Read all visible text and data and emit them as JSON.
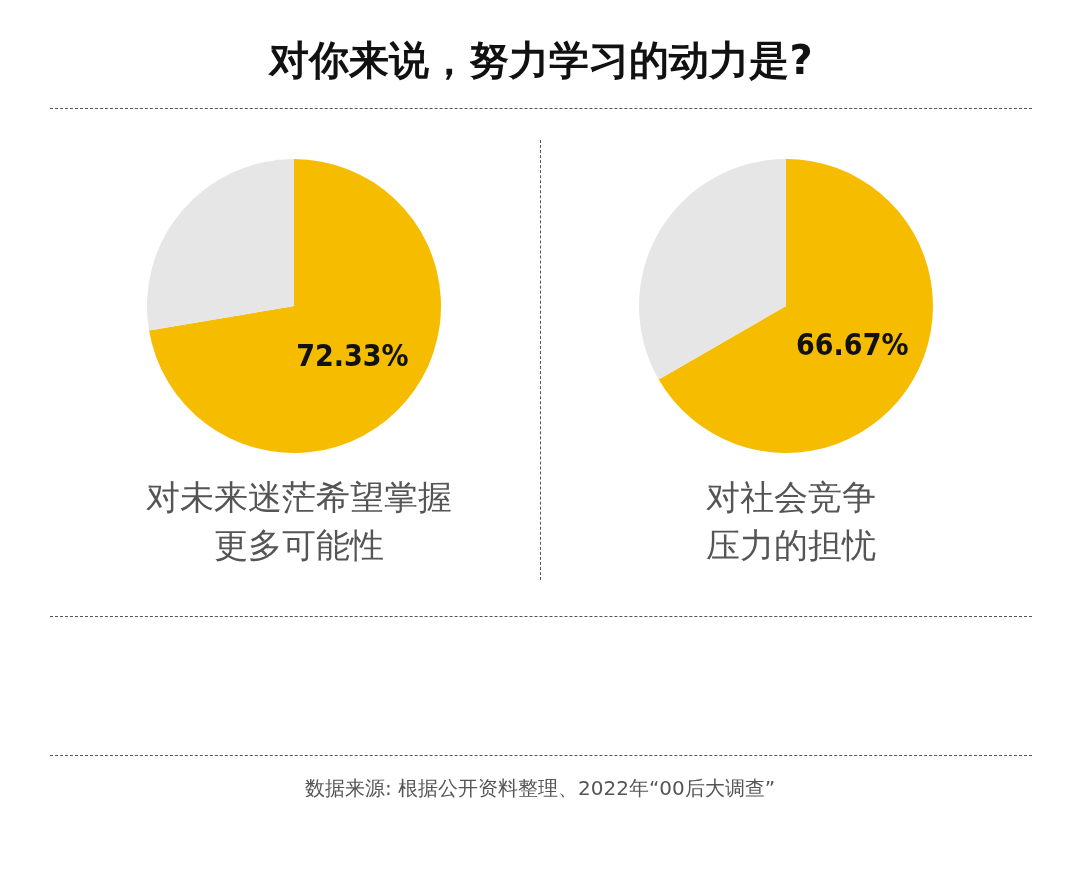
{
  "chart_data": [
    {
      "type": "pie",
      "title": "对你来说，努力学习的动力是?",
      "categories": [
        "对未来迷茫希望掌握更多可能性",
        null
      ],
      "values": [
        72.33,
        27.67
      ],
      "colors": [
        "#f6bd00",
        "#e6e6e6"
      ],
      "value_labels": [
        "72.33%",
        null
      ]
    },
    {
      "type": "pie",
      "categories": [
        "对社会竞争压力的担忧",
        null
      ],
      "values": [
        66.67,
        33.33
      ],
      "colors": [
        "#f6bd00",
        "#e6e6e6"
      ],
      "value_labels": [
        "66.67%",
        null
      ],
      "annotations": [
        "数据来源: 根据公开资料整理、2022年“00后大调查”"
      ]
    }
  ]
}
